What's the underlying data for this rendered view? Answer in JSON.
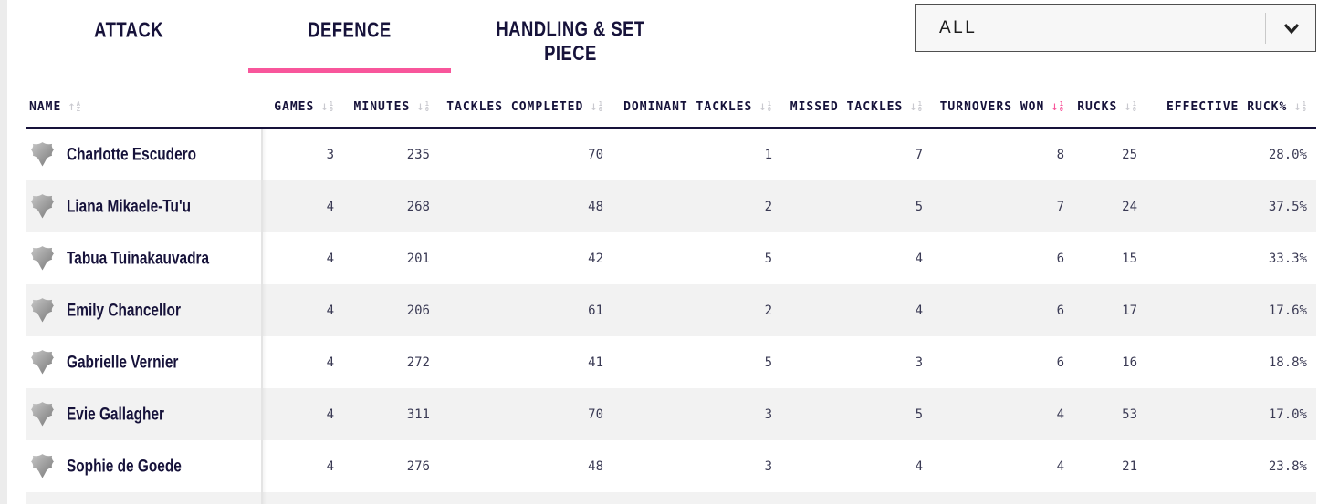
{
  "tabs": [
    {
      "label": "ATTACK",
      "slug": "attack",
      "active": false
    },
    {
      "label": "DEFENCE",
      "slug": "defence",
      "active": true
    },
    {
      "label": "HANDLING & SET PIECE",
      "slug": "handling-set-piece",
      "active": false
    }
  ],
  "filter": {
    "value": "ALL",
    "icon": "chevron-down-icon"
  },
  "table": {
    "columns": [
      {
        "label": "NAME",
        "sort": "alpha-asc",
        "active": false,
        "align": "left"
      },
      {
        "label": "GAMES",
        "sort": "num-desc",
        "active": false,
        "align": "right"
      },
      {
        "label": "MINUTES",
        "sort": "num-desc",
        "active": false,
        "align": "right"
      },
      {
        "label": "TACKLES COMPLETED",
        "sort": "num-desc",
        "active": false,
        "align": "right"
      },
      {
        "label": "DOMINANT TACKLES",
        "sort": "num-desc",
        "active": false,
        "align": "right"
      },
      {
        "label": "MISSED TACKLES",
        "sort": "num-desc",
        "active": false,
        "align": "right"
      },
      {
        "label": "TURNOVERS WON",
        "sort": "num-desc",
        "active": true,
        "align": "right"
      },
      {
        "label": "RUCKS",
        "sort": "num-desc",
        "active": false,
        "align": "right"
      },
      {
        "label": "EFFECTIVE RUCK%",
        "sort": "num-desc",
        "active": false,
        "align": "right"
      }
    ],
    "rows": [
      {
        "name": "Charlotte Escudero",
        "values": [
          "3",
          "235",
          "70",
          "1",
          "7",
          "8",
          "25",
          "28.0%"
        ]
      },
      {
        "name": "Liana Mikaele-Tu'u",
        "values": [
          "4",
          "268",
          "48",
          "2",
          "5",
          "7",
          "24",
          "37.5%"
        ]
      },
      {
        "name": "Tabua Tuinakauvadra",
        "values": [
          "4",
          "201",
          "42",
          "5",
          "4",
          "6",
          "15",
          "33.3%"
        ]
      },
      {
        "name": "Emily Chancellor",
        "values": [
          "4",
          "206",
          "61",
          "2",
          "4",
          "6",
          "17",
          "17.6%"
        ]
      },
      {
        "name": "Gabrielle Vernier",
        "values": [
          "4",
          "272",
          "41",
          "5",
          "3",
          "6",
          "16",
          "18.8%"
        ]
      },
      {
        "name": "Evie Gallagher",
        "values": [
          "4",
          "311",
          "70",
          "3",
          "5",
          "4",
          "53",
          "17.0%"
        ]
      },
      {
        "name": "Sophie de Goede",
        "values": [
          "4",
          "276",
          "48",
          "3",
          "4",
          "4",
          "21",
          "23.8%"
        ]
      }
    ]
  },
  "icons": {
    "row_badge": "team-shield-icon",
    "sort_alpha": "sort-alpha-asc-icon",
    "sort_numeric": "sort-numeric-desc-icon",
    "dropdown": "chevron-down-icon"
  },
  "colors": {
    "accent": "#f8569b",
    "ink": "#16123a",
    "number_text": "#3a3a54",
    "row_stripe": "#f2f2f2",
    "page_edge": "#ececec",
    "sort_idle": "#c9c9cf",
    "dropdown_border": "#4f4f4f",
    "dropdown_bg": "#f7f7f7"
  }
}
